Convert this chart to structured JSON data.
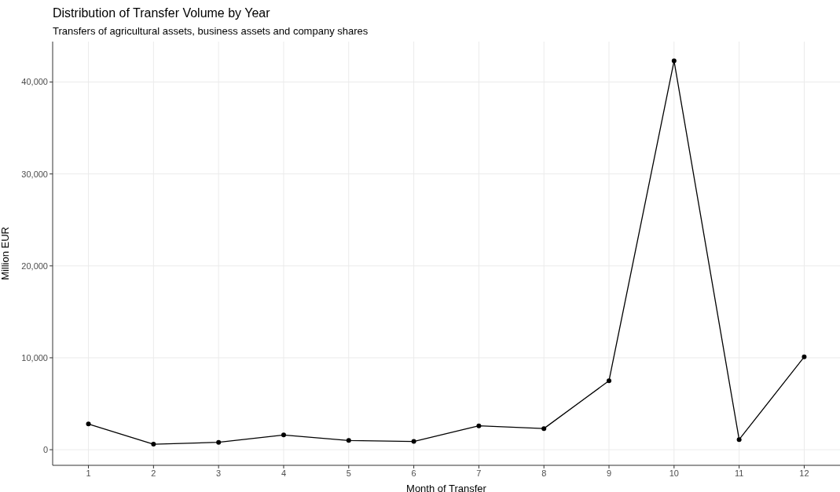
{
  "chart_data": {
    "type": "line",
    "title": "Distribution of Transfer Volume by Year",
    "subtitle": "Transfers of agricultural assets, business assets and company shares",
    "xlabel": "Month of Transfer",
    "ylabel": "Million EUR",
    "x": [
      1,
      2,
      3,
      4,
      5,
      6,
      7,
      8,
      9,
      10,
      11,
      12
    ],
    "series": [
      {
        "color": "#000000",
        "values": [
          2800,
          600,
          800,
          1600,
          1000,
          900,
          2600,
          2300,
          7500,
          42300,
          1100,
          10100
        ]
      }
    ],
    "xlim": [
      0.45,
      12.55
    ],
    "xticks": [
      1,
      2,
      3,
      4,
      5,
      6,
      7,
      8,
      9,
      10,
      11,
      12
    ],
    "ylim": [
      -1700,
      44400
    ],
    "yticks": [
      {
        "value": 0,
        "label": "0"
      },
      {
        "value": 10000,
        "label": "10,000"
      },
      {
        "value": 20000,
        "label": "20,000"
      },
      {
        "value": 30000,
        "label": "30,000"
      },
      {
        "value": 40000,
        "label": "40,000"
      }
    ],
    "grid": true,
    "marker": "circle",
    "line_style": "solid"
  }
}
